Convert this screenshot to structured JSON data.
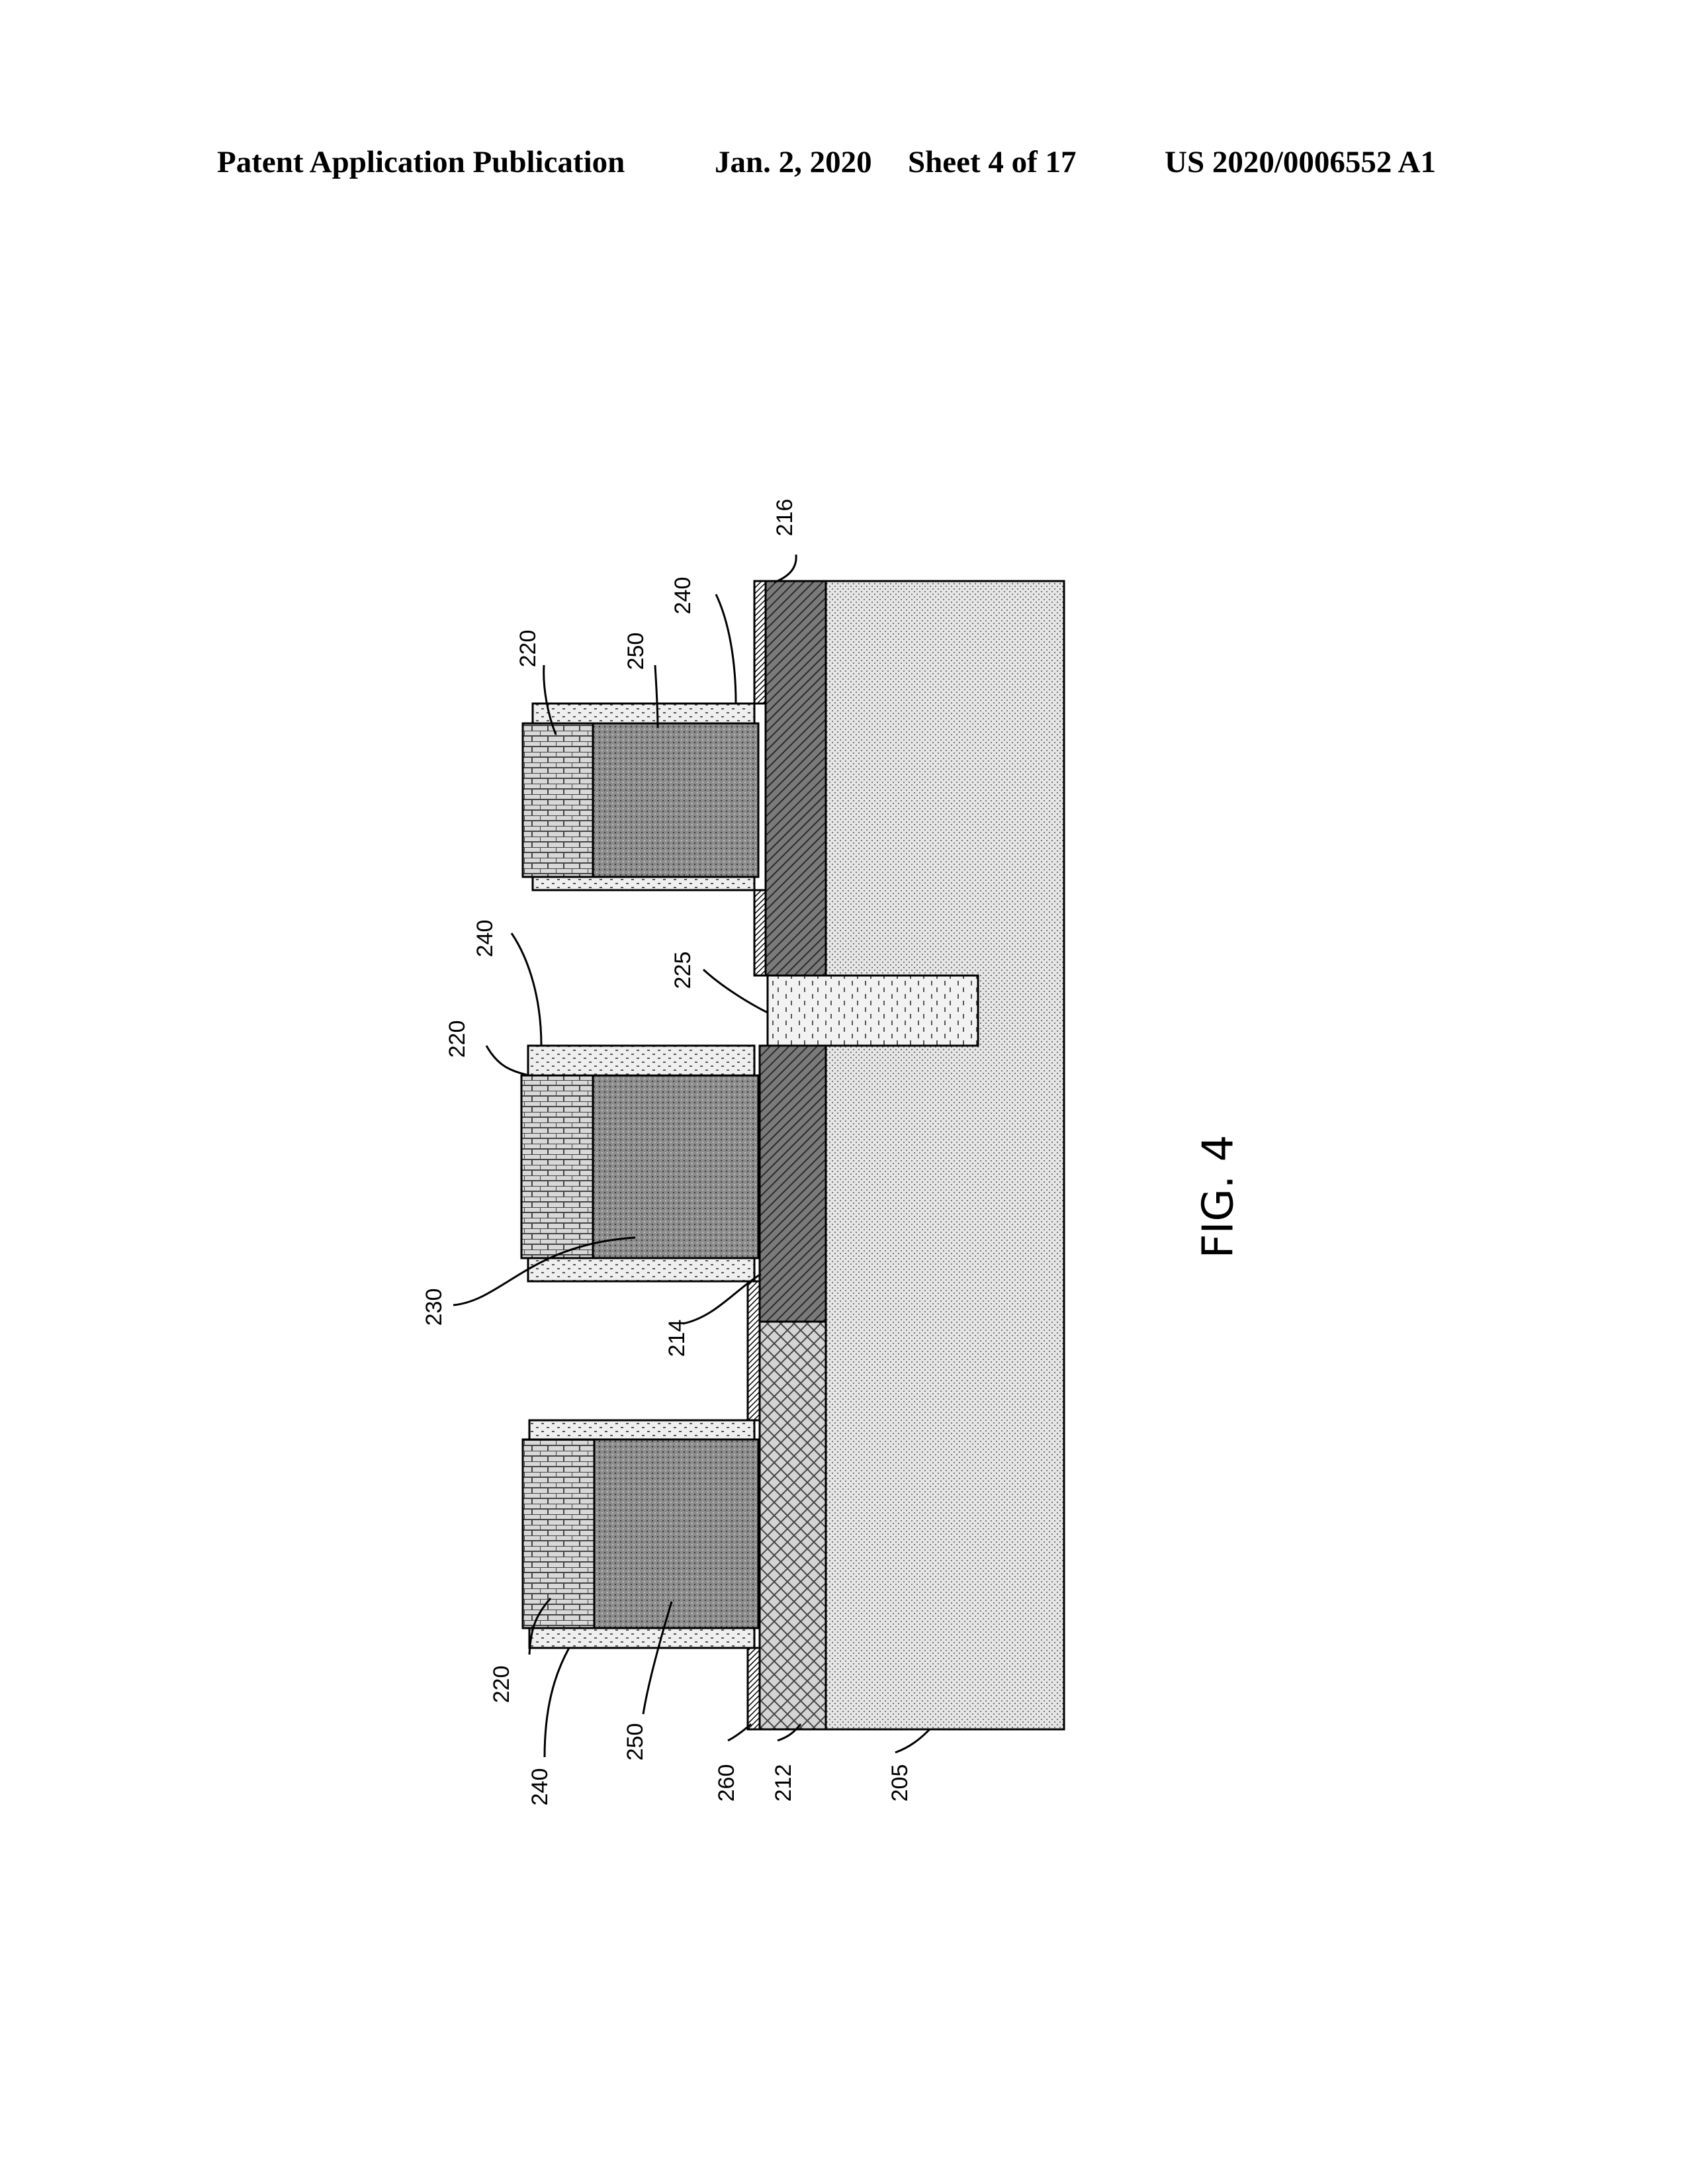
{
  "header": {
    "publication": "Patent Application Publication",
    "date": "Jan. 2, 2020",
    "sheet": "Sheet 4 of 17",
    "number": "US 2020/0006552 A1"
  },
  "figure": {
    "label": "FIG. 4",
    "references": {
      "r216": "216",
      "r240_right": "240",
      "r220_right": "220",
      "r250_right": "250",
      "r240_mid": "240",
      "r225": "225",
      "r220_mid": "220",
      "r230": "230",
      "r214": "214",
      "r220_left": "220",
      "r240_left": "240",
      "r250_left": "250",
      "r260": "260",
      "r212": "212",
      "r205": "205"
    }
  }
}
